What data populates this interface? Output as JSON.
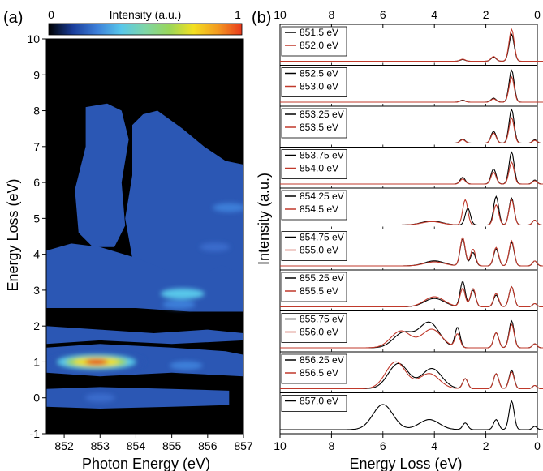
{
  "panel_a": {
    "label": "(a)",
    "colorbar": {
      "label": "Intensity (a.u.)",
      "min_label": "0",
      "max_label": "1",
      "stops": [
        "#000000",
        "#1a3d9a",
        "#3d7fd9",
        "#58c7ea",
        "#7fd6a6",
        "#9ad65a",
        "#f3e020",
        "#f39a20",
        "#e83a1e"
      ]
    },
    "xlabel": "Photon Energy (eV)",
    "ylabel": "Energy Loss (eV)",
    "xticks": [
      "852",
      "853",
      "854",
      "855",
      "856",
      "857"
    ],
    "yticks": [
      "-1",
      "0",
      "1",
      "2",
      "3",
      "4",
      "5",
      "6",
      "7",
      "8",
      "9",
      "10"
    ],
    "background_color": "#000000"
  },
  "panel_b": {
    "label": "(b)",
    "xlabel": "Energy Loss (eV)",
    "ylabel": "Intensity (a.u.)",
    "top_xticks": [
      "10",
      "8",
      "6",
      "4",
      "2",
      "0"
    ],
    "bottom_xticks": [
      "10",
      "8",
      "6",
      "4",
      "2",
      "0"
    ],
    "colors": {
      "black": "#000000",
      "red": "#c0392b"
    }
  },
  "chart_data": [
    {
      "type": "heatmap",
      "title": "",
      "xlabel": "Photon Energy (eV)",
      "ylabel": "Energy Loss (eV)",
      "xlim": [
        851.5,
        857.0
      ],
      "ylim": [
        -1,
        10
      ],
      "colorbar_label": "Intensity (a.u.)",
      "colorbar_range": [
        0,
        1
      ],
      "features": [
        {
          "photon_energy": 852.9,
          "energy_loss": 1.0,
          "intensity": 1.0
        },
        {
          "photon_energy": 852.4,
          "energy_loss": 1.0,
          "intensity": 0.65
        },
        {
          "photon_energy": 853.4,
          "energy_loss": 1.0,
          "intensity": 0.6
        },
        {
          "photon_energy": 855.3,
          "energy_loss": 2.9,
          "intensity": 0.5
        },
        {
          "photon_energy": 855.2,
          "energy_loss": 2.6,
          "intensity": 0.3
        },
        {
          "photon_energy": 855.4,
          "energy_loss": 0.9,
          "intensity": 0.3
        },
        {
          "photon_energy": 856.6,
          "energy_loss": 5.3,
          "intensity": 0.3
        },
        {
          "photon_energy": 856.2,
          "energy_loss": 4.2,
          "intensity": 0.25
        },
        {
          "photon_energy": 853.0,
          "energy_loss": 0.0,
          "intensity": 0.25
        }
      ]
    },
    {
      "type": "line",
      "xlabel": "Energy Loss (eV)",
      "ylabel": "Intensity (a.u.)",
      "xlim": [
        10,
        0
      ],
      "panels": [
        {
          "series": [
            {
              "name": "851.5 eV",
              "color": "black",
              "peaks": [
                [
                  1.0,
                  0.8
                ],
                [
                  1.7,
                  0.12
                ],
                [
                  2.9,
                  0.05
                ]
              ]
            },
            {
              "name": "852.0 eV",
              "color": "red",
              "peaks": [
                [
                  1.0,
                  0.95
                ],
                [
                  1.7,
                  0.14
                ],
                [
                  2.9,
                  0.06
                ]
              ]
            }
          ]
        },
        {
          "series": [
            {
              "name": "852.5 eV",
              "color": "black",
              "peaks": [
                [
                  1.0,
                  0.95
                ],
                [
                  1.7,
                  0.12
                ],
                [
                  2.9,
                  0.06
                ]
              ]
            },
            {
              "name": "853.0 eV",
              "color": "red",
              "peaks": [
                [
                  1.0,
                  0.75
                ],
                [
                  1.7,
                  0.1
                ],
                [
                  2.9,
                  0.05
                ]
              ]
            }
          ]
        },
        {
          "series": [
            {
              "name": "853.25 eV",
              "color": "black",
              "peaks": [
                [
                  1.0,
                  1.0
                ],
                [
                  1.7,
                  0.35
                ],
                [
                  2.9,
                  0.12
                ],
                [
                  0.1,
                  0.1
                ]
              ]
            },
            {
              "name": "853.5 eV",
              "color": "red",
              "peaks": [
                [
                  1.0,
                  0.75
                ],
                [
                  1.7,
                  0.3
                ],
                [
                  2.9,
                  0.1
                ],
                [
                  0.1,
                  0.08
                ]
              ]
            }
          ]
        },
        {
          "series": [
            {
              "name": "853.75 eV",
              "color": "black",
              "peaks": [
                [
                  1.0,
                  0.95
                ],
                [
                  1.7,
                  0.45
                ],
                [
                  2.9,
                  0.2
                ],
                [
                  0.1,
                  0.12
                ]
              ]
            },
            {
              "name": "854.0 eV",
              "color": "red",
              "peaks": [
                [
                  1.0,
                  0.65
                ],
                [
                  1.7,
                  0.35
                ],
                [
                  2.9,
                  0.15
                ],
                [
                  0.1,
                  0.1
                ]
              ]
            }
          ]
        },
        {
          "series": [
            {
              "name": "854.25 eV",
              "color": "black",
              "peaks": [
                [
                  1.0,
                  0.8
                ],
                [
                  1.6,
                  0.85
                ],
                [
                  2.7,
                  0.5
                ],
                [
                  4.1,
                  0.12
                ],
                [
                  0.1,
                  0.15
                ]
              ]
            },
            {
              "name": "854.5 eV",
              "color": "red",
              "peaks": [
                [
                  1.0,
                  0.75
                ],
                [
                  1.6,
                  0.6
                ],
                [
                  2.8,
                  0.75
                ],
                [
                  4.1,
                  0.1
                ],
                [
                  0.1,
                  0.15
                ]
              ]
            }
          ]
        },
        {
          "series": [
            {
              "name": "854.75 eV",
              "color": "black",
              "peaks": [
                [
                  1.0,
                  0.7
                ],
                [
                  1.6,
                  0.5
                ],
                [
                  2.9,
                  0.8
                ],
                [
                  2.5,
                  0.4
                ],
                [
                  4.0,
                  0.15
                ],
                [
                  0.1,
                  0.15
                ]
              ]
            },
            {
              "name": "855.0 eV",
              "color": "red",
              "peaks": [
                [
                  1.0,
                  0.75
                ],
                [
                  1.6,
                  0.55
                ],
                [
                  2.9,
                  0.85
                ],
                [
                  2.5,
                  0.5
                ],
                [
                  4.0,
                  0.12
                ],
                [
                  0.1,
                  0.15
                ]
              ]
            }
          ]
        },
        {
          "series": [
            {
              "name": "855.25 eV",
              "color": "black",
              "peaks": [
                [
                  1.0,
                  0.6
                ],
                [
                  1.6,
                  0.35
                ],
                [
                  2.9,
                  0.75
                ],
                [
                  2.5,
                  0.5
                ],
                [
                  4.0,
                  0.25
                ],
                [
                  0.1,
                  0.1
                ]
              ]
            },
            {
              "name": "855.5 eV",
              "color": "red",
              "peaks": [
                [
                  1.0,
                  0.6
                ],
                [
                  1.6,
                  0.4
                ],
                [
                  2.9,
                  0.55
                ],
                [
                  2.5,
                  0.55
                ],
                [
                  4.0,
                  0.3
                ],
                [
                  0.1,
                  0.1
                ]
              ]
            }
          ]
        },
        {
          "series": [
            {
              "name": "855.75 eV",
              "color": "black",
              "peaks": [
                [
                  1.0,
                  0.8
                ],
                [
                  1.6,
                  0.45
                ],
                [
                  3.1,
                  0.6
                ],
                [
                  4.2,
                  0.75
                ],
                [
                  5.2,
                  0.45
                ],
                [
                  0.1,
                  0.12
                ]
              ]
            },
            {
              "name": "856.0 eV",
              "color": "red",
              "peaks": [
                [
                  1.0,
                  0.7
                ],
                [
                  1.6,
                  0.45
                ],
                [
                  3.1,
                  0.4
                ],
                [
                  4.1,
                  0.55
                ],
                [
                  5.3,
                  0.5
                ],
                [
                  0.1,
                  0.12
                ]
              ]
            }
          ]
        },
        {
          "series": [
            {
              "name": "856.25 eV",
              "color": "black",
              "peaks": [
                [
                  1.0,
                  0.55
                ],
                [
                  1.6,
                  0.45
                ],
                [
                  2.8,
                  0.3
                ],
                [
                  4.1,
                  0.6
                ],
                [
                  5.4,
                  0.75
                ],
                [
                  0.1,
                  0.1
                ]
              ]
            },
            {
              "name": "856.5 eV",
              "color": "red",
              "peaks": [
                [
                  1.0,
                  0.5
                ],
                [
                  1.6,
                  0.45
                ],
                [
                  2.8,
                  0.3
                ],
                [
                  4.2,
                  0.45
                ],
                [
                  5.5,
                  0.8
                ],
                [
                  0.1,
                  0.1
                ]
              ]
            }
          ]
        },
        {
          "series": [
            {
              "name": "857.0 eV",
              "color": "black",
              "peaks": [
                [
                  1.0,
                  0.85
                ],
                [
                  1.6,
                  0.3
                ],
                [
                  2.8,
                  0.2
                ],
                [
                  4.2,
                  0.3
                ],
                [
                  6.0,
                  0.75
                ],
                [
                  0.1,
                  0.1
                ]
              ]
            }
          ]
        }
      ]
    }
  ]
}
